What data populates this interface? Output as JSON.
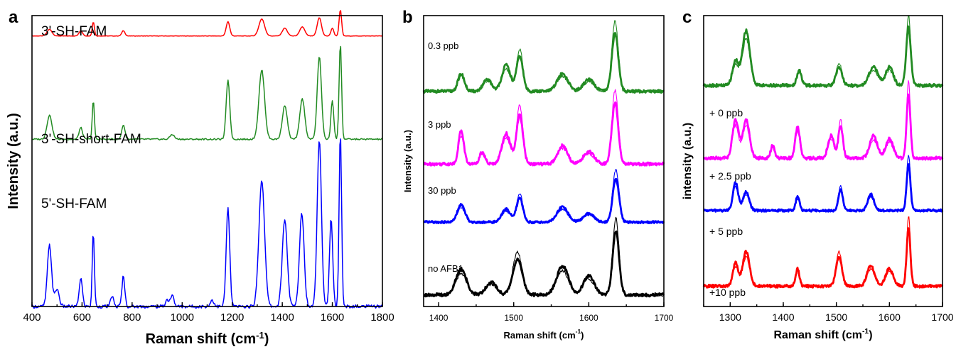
{
  "figure": {
    "panel_labels": [
      "a",
      "b",
      "c"
    ]
  },
  "chart_data": [
    {
      "panel": "a",
      "type": "line",
      "title": "",
      "xlabel": "Raman shift (cm",
      "xlabel_sup": "-1",
      "xlabel_close": ")",
      "ylabel": "Intensity (a.u.)",
      "xlim": [
        400,
        1800
      ],
      "xticks": [
        400,
        600,
        800,
        1000,
        1200,
        1400,
        1600,
        1800
      ],
      "y_ticks_shown": false,
      "series": [
        {
          "name": "3'-SH-FAM",
          "color": "#ff0000",
          "offset": 0.93,
          "scale": 0.09,
          "peaks": [
            [
              470,
              0.25,
              14
            ],
            [
              595,
              0.2,
              10
            ],
            [
              645,
              0.55,
              6
            ],
            [
              765,
              0.2,
              9
            ],
            [
              1183,
              0.55,
              10
            ],
            [
              1318,
              0.65,
              16
            ],
            [
              1410,
              0.3,
              14
            ],
            [
              1480,
              0.35,
              14
            ],
            [
              1548,
              0.7,
              12
            ],
            [
              1600,
              0.3,
              8
            ],
            [
              1632,
              1.0,
              7
            ]
          ]
        },
        {
          "name": "3'-SH-short-FAM",
          "color": "#228b22",
          "offset": 0.575,
          "scale": 0.33,
          "peaks": [
            [
              470,
              0.25,
              14
            ],
            [
              595,
              0.12,
              10
            ],
            [
              645,
              0.4,
              6
            ],
            [
              765,
              0.15,
              9
            ],
            [
              960,
              0.05,
              12
            ],
            [
              1183,
              0.62,
              10
            ],
            [
              1318,
              0.72,
              16
            ],
            [
              1410,
              0.35,
              14
            ],
            [
              1480,
              0.42,
              14
            ],
            [
              1548,
              0.86,
              12
            ],
            [
              1600,
              0.4,
              8
            ],
            [
              1632,
              1.0,
              7
            ]
          ]
        },
        {
          "name": "5'-SH-FAM",
          "color": "#0000ff",
          "offset": 0.0,
          "scale": 0.75,
          "peaks": [
            [
              470,
              0.28,
              12
            ],
            [
              500,
              0.08,
              12
            ],
            [
              595,
              0.13,
              9
            ],
            [
              645,
              0.34,
              6
            ],
            [
              720,
              0.05,
              8
            ],
            [
              765,
              0.14,
              8
            ],
            [
              940,
              0.03,
              10
            ],
            [
              960,
              0.05,
              10
            ],
            [
              1120,
              0.03,
              10
            ],
            [
              1183,
              0.45,
              10
            ],
            [
              1318,
              0.58,
              16
            ],
            [
              1410,
              0.4,
              14
            ],
            [
              1478,
              0.43,
              13
            ],
            [
              1548,
              0.77,
              12
            ],
            [
              1595,
              0.4,
              9
            ],
            [
              1632,
              0.8,
              7
            ]
          ]
        }
      ]
    },
    {
      "panel": "b",
      "type": "line",
      "title": "",
      "xlabel": "Raman shift (cm",
      "xlabel_sup": "-1",
      "xlabel_close": ")",
      "ylabel": "Intensity (a.u.)",
      "xlim": [
        1380,
        1700
      ],
      "xticks": [
        1400,
        1500,
        1600,
        1700
      ],
      "y_ticks_shown": false,
      "series": [
        {
          "name": "0.3 ppb",
          "color": "#228b22",
          "offset": 0.74,
          "scale": 0.2,
          "peaks": [
            [
              1430,
              0.3,
              6
            ],
            [
              1465,
              0.2,
              8
            ],
            [
              1490,
              0.45,
              8
            ],
            [
              1508,
              0.6,
              6
            ],
            [
              1565,
              0.3,
              10
            ],
            [
              1600,
              0.2,
              10
            ],
            [
              1635,
              1.0,
              6
            ]
          ]
        },
        {
          "name": "3 ppb",
          "color": "#ff00ff",
          "offset": 0.49,
          "scale": 0.21,
          "peaks": [
            [
              1430,
              0.55,
              5
            ],
            [
              1458,
              0.2,
              5
            ],
            [
              1490,
              0.5,
              8
            ],
            [
              1508,
              0.8,
              6
            ],
            [
              1565,
              0.3,
              9
            ],
            [
              1600,
              0.2,
              10
            ],
            [
              1635,
              1.0,
              6
            ]
          ]
        },
        {
          "name": "30 ppb",
          "color": "#0000ff",
          "offset": 0.29,
          "scale": 0.15,
          "peaks": [
            [
              1430,
              0.4,
              7
            ],
            [
              1490,
              0.3,
              8
            ],
            [
              1508,
              0.55,
              6
            ],
            [
              1565,
              0.35,
              10
            ],
            [
              1600,
              0.2,
              10
            ],
            [
              1636,
              1.0,
              6
            ]
          ]
        },
        {
          "name": "no AFB1",
          "color": "#000000",
          "offset": 0.04,
          "scale": 0.22,
          "peaks": [
            [
              1430,
              0.4,
              10
            ],
            [
              1470,
              0.2,
              10
            ],
            [
              1505,
              0.55,
              9
            ],
            [
              1565,
              0.45,
              11
            ],
            [
              1600,
              0.3,
              10
            ],
            [
              1636,
              1.0,
              6
            ]
          ]
        }
      ]
    },
    {
      "panel": "c",
      "type": "line",
      "title": "",
      "xlabel": "Raman shift (cm",
      "xlabel_sup": "-1",
      "xlabel_close": ")",
      "ylabel": "intensity (a.u.)",
      "xlim": [
        1250,
        1700
      ],
      "xticks": [
        1300,
        1400,
        1500,
        1600,
        1700
      ],
      "y_ticks_shown": false,
      "series": [
        {
          "name": "+ 0 ppb",
          "color": "#228b22",
          "offset": 0.76,
          "scale": 0.21,
          "peaks": [
            [
              1330,
              0.9,
              10
            ],
            [
              1310,
              0.4,
              8
            ],
            [
              1430,
              0.25,
              6
            ],
            [
              1505,
              0.3,
              8
            ],
            [
              1570,
              0.3,
              12
            ],
            [
              1600,
              0.3,
              10
            ],
            [
              1636,
              0.95,
              6
            ]
          ]
        },
        {
          "name": "+ 2.5 ppb",
          "color": "#ff00ff",
          "offset": 0.51,
          "scale": 0.22,
          "peaks": [
            [
              1310,
              0.6,
              8
            ],
            [
              1330,
              0.6,
              9
            ],
            [
              1380,
              0.2,
              5
            ],
            [
              1427,
              0.5,
              6
            ],
            [
              1490,
              0.35,
              8
            ],
            [
              1508,
              0.5,
              6
            ],
            [
              1570,
              0.35,
              10
            ],
            [
              1600,
              0.3,
              10
            ],
            [
              1636,
              1.0,
              5
            ]
          ]
        },
        {
          "name": "+ 5 ppb",
          "color": "#0000ff",
          "offset": 0.33,
          "scale": 0.16,
          "peaks": [
            [
              1310,
              0.6,
              7
            ],
            [
              1330,
              0.4,
              8
            ],
            [
              1427,
              0.3,
              5
            ],
            [
              1508,
              0.45,
              6
            ],
            [
              1565,
              0.35,
              8
            ],
            [
              1636,
              1.0,
              5
            ]
          ]
        },
        {
          "name": "+10 ppb",
          "color": "#ff0000",
          "offset": 0.07,
          "scale": 0.2,
          "peaks": [
            [
              1310,
              0.4,
              7
            ],
            [
              1330,
              0.6,
              9
            ],
            [
              1427,
              0.3,
              5
            ],
            [
              1505,
              0.5,
              8
            ],
            [
              1565,
              0.35,
              10
            ],
            [
              1600,
              0.3,
              10
            ],
            [
              1636,
              1.0,
              5
            ]
          ]
        }
      ]
    }
  ]
}
